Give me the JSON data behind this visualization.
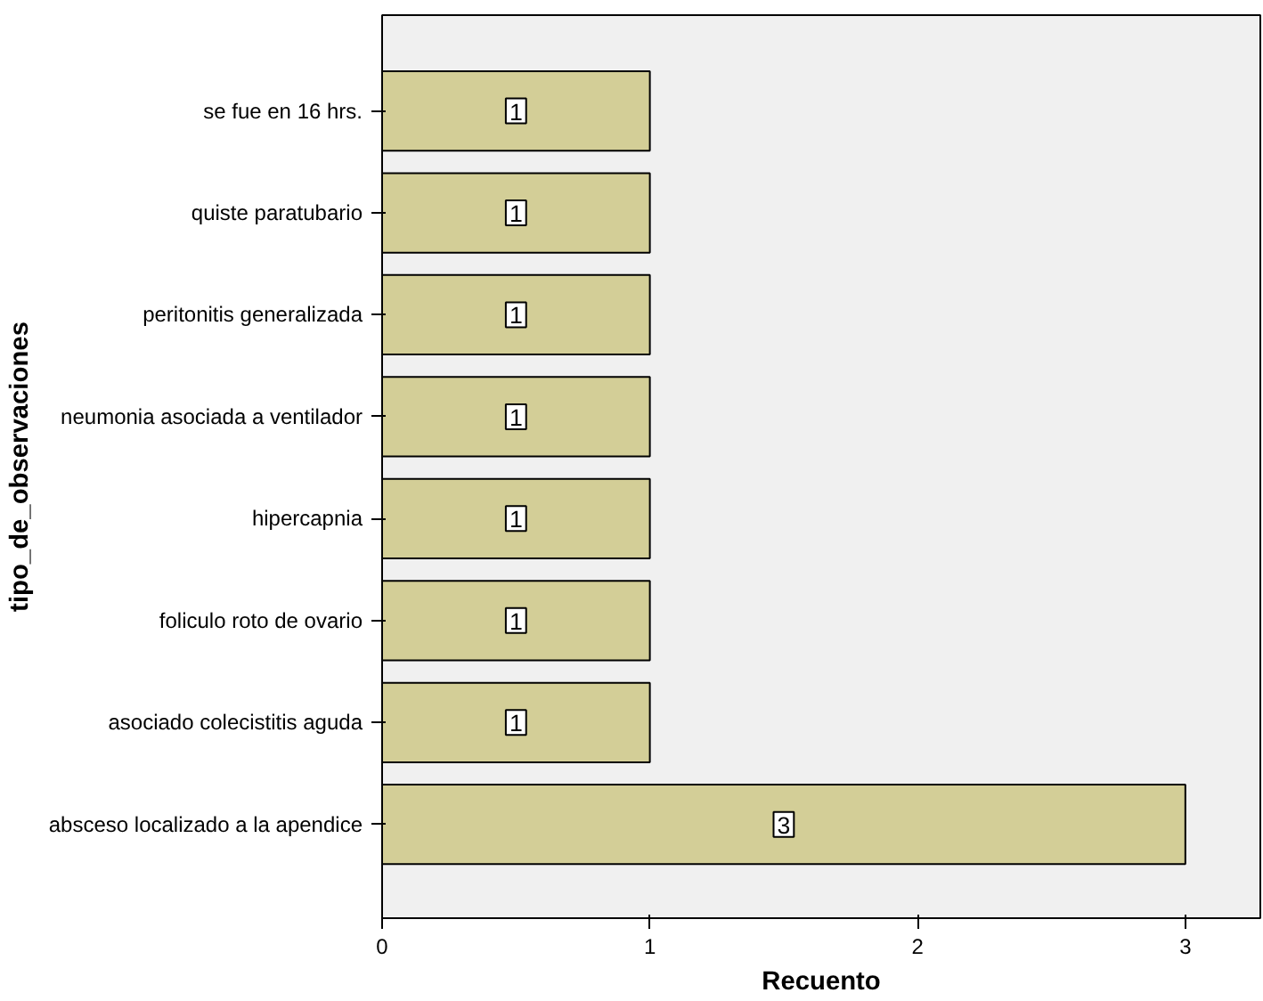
{
  "chart_data": {
    "type": "bar",
    "orientation": "horizontal",
    "xlabel": "Recuento",
    "ylabel": "tipo_de_observaciones",
    "categories": [
      "se fue en 16 hrs.",
      "quiste paratubario",
      "peritonitis generalizada",
      "neumonia asociada a ventilador",
      "hipercapnia",
      "foliculo roto de ovario",
      "asociado colecistitis aguda",
      "absceso localizado a la apendice"
    ],
    "values": [
      1,
      1,
      1,
      1,
      1,
      1,
      1,
      3
    ],
    "color": "#d3ce97",
    "data_labels": true,
    "xlim": [
      0,
      3.28
    ],
    "xticks": [
      0,
      1,
      2,
      3
    ],
    "grid": false
  }
}
